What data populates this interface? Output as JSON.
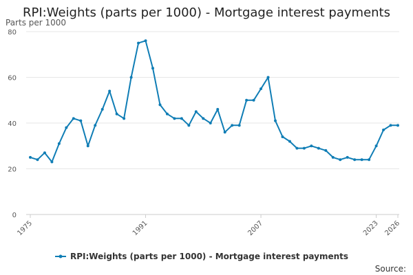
{
  "chart_data": {
    "type": "line",
    "title": "RPI:Weights (parts per 1000) - Mortgage interest payments",
    "ylabel": "Parts per 1000",
    "xlabel": "",
    "ylim": [
      0,
      80
    ],
    "yticks": [
      0,
      20,
      40,
      60,
      80
    ],
    "xlim": [
      1975,
      2026
    ],
    "xtick_labels": [
      "1975",
      "1991",
      "2007",
      "2023",
      "2026"
    ],
    "grid": true,
    "legend_position": "bottom",
    "color": "#0f7db5",
    "series": [
      {
        "name": "RPI:Weights (parts per 1000) - Mortgage interest payments",
        "x": [
          1975,
          1976,
          1977,
          1978,
          1979,
          1980,
          1981,
          1982,
          1983,
          1984,
          1985,
          1986,
          1987,
          1988,
          1989,
          1990,
          1991,
          1992,
          1993,
          1994,
          1995,
          1996,
          1997,
          1998,
          1999,
          2000,
          2001,
          2002,
          2003,
          2004,
          2005,
          2006,
          2007,
          2008,
          2009,
          2010,
          2011,
          2012,
          2013,
          2014,
          2015,
          2016,
          2017,
          2018,
          2019,
          2020,
          2021,
          2022,
          2023,
          2024,
          2025,
          2026
        ],
        "values": [
          25,
          24,
          27,
          23,
          31,
          38,
          42,
          41,
          30,
          39,
          46,
          54,
          44,
          42,
          60,
          75,
          76,
          64,
          48,
          44,
          42,
          42,
          39,
          45,
          42,
          40,
          46,
          36,
          39,
          39,
          50,
          50,
          55,
          60,
          41,
          34,
          32,
          29,
          29,
          30,
          29,
          28,
          25,
          24,
          25,
          24,
          24,
          24,
          30,
          37,
          39,
          39
        ]
      }
    ]
  },
  "source_label": "Source:"
}
